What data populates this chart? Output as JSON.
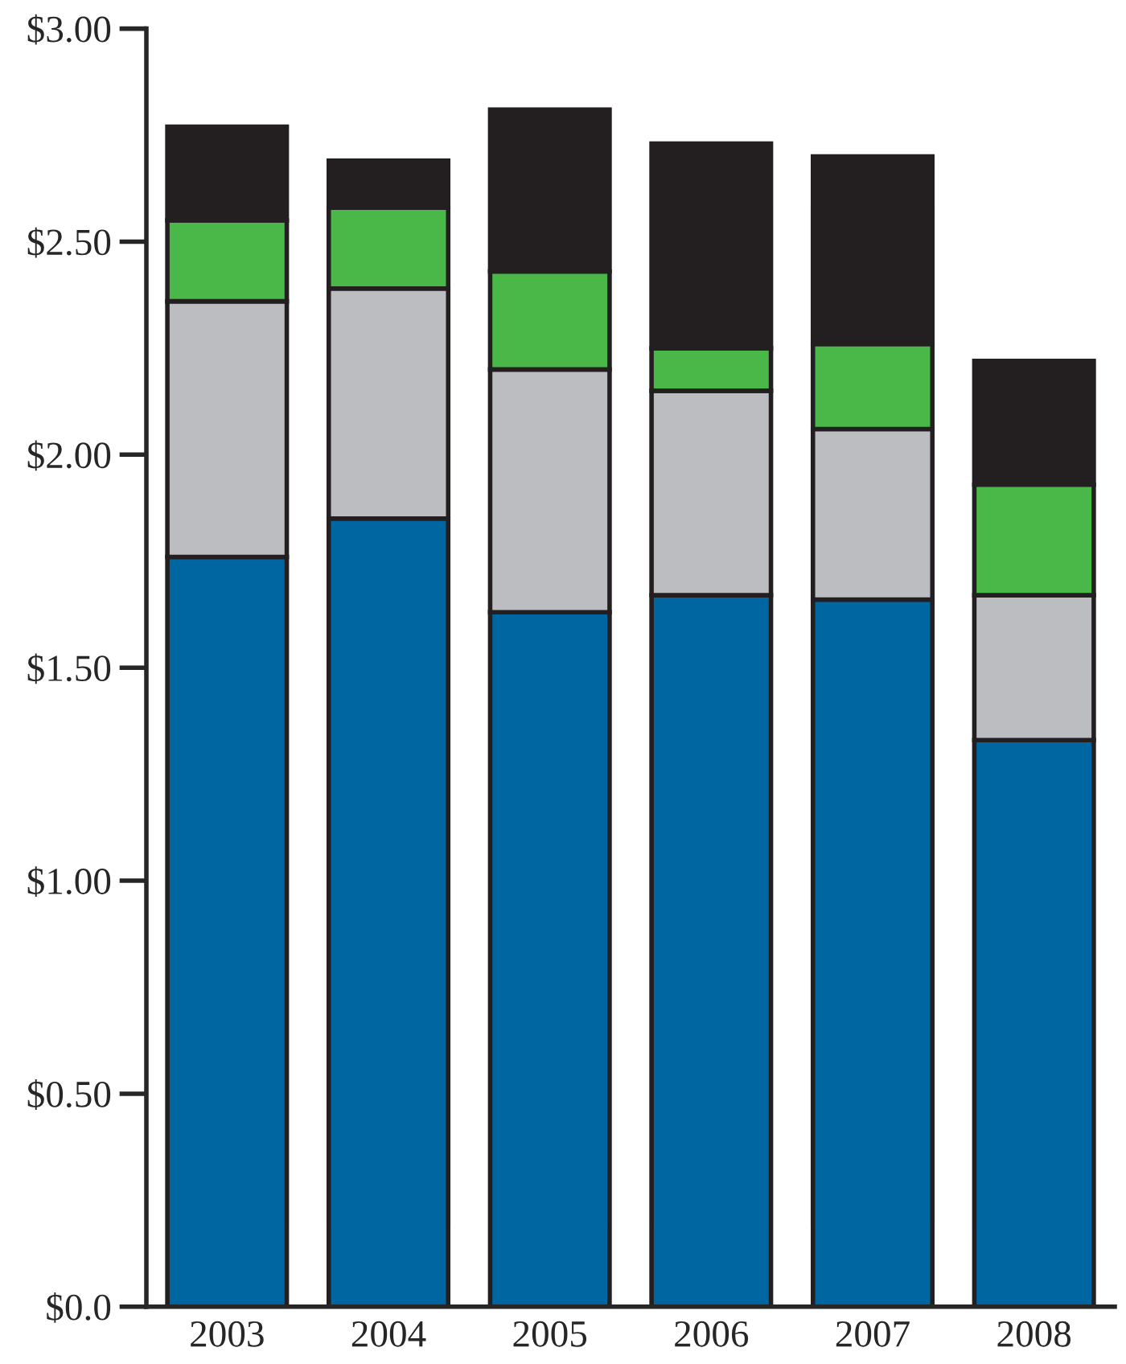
{
  "chart_data": {
    "type": "bar",
    "stacked": true,
    "categories": [
      "2003",
      "2004",
      "2005",
      "2006",
      "2007",
      "2008"
    ],
    "series": [
      {
        "color": "#0066a1",
        "values": [
          1.76,
          1.85,
          1.63,
          1.67,
          1.66,
          1.33
        ]
      },
      {
        "color": "#bcbdc0",
        "values": [
          0.6,
          0.54,
          0.57,
          0.48,
          0.4,
          0.34
        ]
      },
      {
        "color": "#4ab848",
        "values": [
          0.19,
          0.19,
          0.23,
          0.1,
          0.2,
          0.26
        ]
      },
      {
        "color": "#231f20",
        "values": [
          0.22,
          0.11,
          0.38,
          0.48,
          0.44,
          0.29
        ]
      }
    ],
    "ylim": [
      0,
      3
    ],
    "yticks": [
      {
        "value": 0,
        "label": "$0.0"
      },
      {
        "value": 0.5,
        "label": "$0.50"
      },
      {
        "value": 1,
        "label": "$1.00"
      },
      {
        "value": 1.5,
        "label": "$1.50"
      },
      {
        "value": 2,
        "label": "$2.00"
      },
      {
        "value": 2.5,
        "label": "$2.50"
      },
      {
        "value": 3,
        "label": "$3.00"
      }
    ],
    "grid": false,
    "legend": false
  }
}
